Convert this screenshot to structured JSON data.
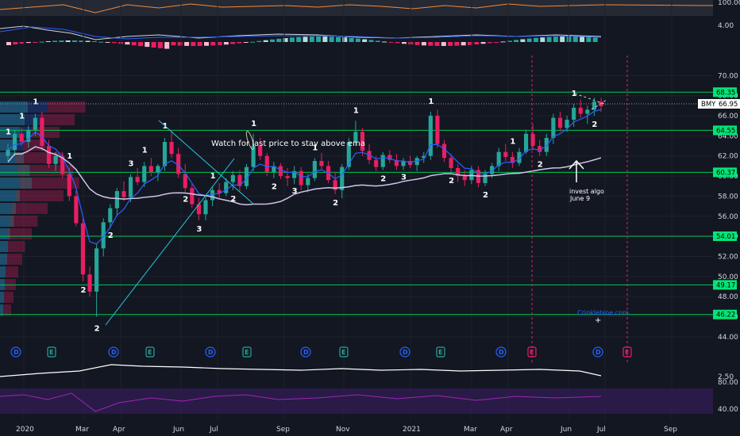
{
  "chart_data": {
    "type": "candlestick",
    "symbol": "BMY",
    "last_price": "66.95",
    "price_axis": {
      "range": [
        43.2,
        72.0
      ],
      "ticks": [
        "70.00",
        "68.00",
        "66.00",
        "64.00",
        "62.00",
        "60.00",
        "58.00",
        "56.00",
        "54.00",
        "52.00",
        "50.00",
        "48.00",
        "46.00",
        "44.00"
      ]
    },
    "time_axis": {
      "labels": [
        "2020",
        "Mar",
        "Apr",
        "Jun",
        "Jul",
        "Sep",
        "Nov",
        "2021",
        "Mar",
        "Apr",
        "Jun",
        "Jul",
        "Sep"
      ]
    },
    "levels": [
      "68.35",
      "64.55",
      "60.37",
      "54.01",
      "49.17",
      "46.22"
    ],
    "top_indicator_labels": [
      "100.00",
      "4.00"
    ],
    "bottom_indicator_labels": [
      "2.50",
      "80.00",
      "40.00"
    ],
    "annotations": {
      "watch_text": "Watch for last price to stay above ema",
      "invest_text_1": "invest algo",
      "invest_text_2": "June 9",
      "watermark": "Crinklebine.com"
    },
    "events": [
      "D",
      "E",
      "D",
      "E",
      "D",
      "E",
      "D",
      "E",
      "D",
      "E",
      "D",
      "E",
      "D",
      "E"
    ],
    "candles": [
      [
        62.0,
        63.2,
        61.5,
        62.6
      ],
      [
        62.6,
        64.6,
        62.0,
        64.2
      ],
      [
        64.2,
        64.8,
        63.0,
        63.4
      ],
      [
        63.4,
        65.0,
        62.8,
        64.6
      ],
      [
        64.6,
        66.2,
        64.0,
        65.8
      ],
      [
        65.8,
        66.4,
        62.5,
        63.0
      ],
      [
        63.0,
        63.6,
        60.8,
        61.2
      ],
      [
        61.2,
        62.4,
        60.5,
        62.0
      ],
      [
        62.0,
        62.3,
        59.8,
        60.2
      ],
      [
        60.2,
        60.8,
        57.5,
        58.0
      ],
      [
        58.0,
        58.6,
        55.0,
        55.3
      ],
      [
        55.3,
        55.8,
        49.5,
        50.2
      ],
      [
        50.2,
        51.0,
        48.0,
        48.5
      ],
      [
        48.5,
        53.2,
        46.0,
        52.8
      ],
      [
        52.8,
        55.8,
        52.0,
        55.4
      ],
      [
        55.4,
        57.2,
        54.8,
        56.8
      ],
      [
        56.8,
        58.8,
        56.0,
        58.5
      ],
      [
        58.5,
        59.5,
        57.5,
        57.9
      ],
      [
        57.9,
        60.2,
        57.4,
        59.9
      ],
      [
        59.9,
        60.8,
        59.1,
        59.4
      ],
      [
        59.4,
        61.4,
        58.9,
        61.0
      ],
      [
        61.0,
        61.8,
        60.0,
        60.4
      ],
      [
        60.4,
        61.2,
        59.5,
        61.0
      ],
      [
        61.0,
        63.8,
        60.5,
        63.4
      ],
      [
        63.4,
        64.6,
        61.8,
        62.2
      ],
      [
        62.2,
        62.8,
        59.8,
        60.2
      ],
      [
        60.2,
        61.2,
        58.4,
        58.8
      ],
      [
        58.8,
        59.2,
        56.8,
        57.2
      ],
      [
        57.2,
        57.8,
        55.6,
        56.2
      ],
      [
        56.2,
        58.0,
        55.6,
        57.6
      ],
      [
        57.6,
        59.0,
        57.0,
        58.6
      ],
      [
        58.6,
        59.3,
        57.8,
        58.3
      ],
      [
        58.3,
        59.8,
        58.0,
        59.4
      ],
      [
        59.4,
        60.5,
        58.6,
        60.1
      ],
      [
        60.1,
        60.6,
        58.5,
        59.0
      ],
      [
        59.0,
        61.2,
        58.7,
        60.9
      ],
      [
        60.9,
        64.2,
        60.5,
        63.0
      ],
      [
        63.0,
        63.8,
        61.6,
        62.0
      ],
      [
        62.0,
        62.3,
        60.0,
        60.4
      ],
      [
        60.4,
        61.4,
        59.8,
        61.0
      ],
      [
        61.0,
        61.3,
        59.7,
        60.0
      ],
      [
        60.0,
        60.8,
        59.0,
        59.8
      ],
      [
        59.8,
        61.0,
        59.2,
        60.5
      ],
      [
        60.5,
        60.9,
        58.6,
        59.1
      ],
      [
        59.1,
        60.2,
        58.4,
        59.8
      ],
      [
        59.8,
        61.8,
        59.5,
        61.5
      ],
      [
        61.5,
        62.3,
        60.6,
        61.0
      ],
      [
        61.0,
        61.5,
        59.3,
        59.6
      ],
      [
        59.6,
        60.4,
        58.2,
        58.6
      ],
      [
        58.6,
        61.2,
        57.8,
        60.9
      ],
      [
        60.9,
        63.8,
        60.6,
        63.4
      ],
      [
        63.4,
        65.5,
        63.0,
        64.4
      ],
      [
        64.4,
        64.8,
        62.0,
        62.5
      ],
      [
        62.5,
        63.2,
        61.2,
        61.6
      ],
      [
        61.6,
        62.0,
        60.5,
        60.9
      ],
      [
        60.9,
        62.4,
        60.6,
        62.1
      ],
      [
        62.1,
        62.6,
        61.3,
        61.6
      ],
      [
        61.6,
        62.2,
        60.6,
        61.0
      ],
      [
        61.0,
        61.8,
        60.6,
        61.5
      ],
      [
        61.5,
        62.0,
        60.8,
        61.1
      ],
      [
        61.1,
        62.0,
        60.5,
        61.8
      ],
      [
        61.8,
        62.4,
        61.3,
        62.0
      ],
      [
        62.0,
        66.4,
        61.6,
        66.0
      ],
      [
        66.0,
        66.6,
        62.8,
        63.2
      ],
      [
        63.2,
        63.6,
        61.4,
        61.8
      ],
      [
        61.8,
        62.2,
        60.4,
        60.8
      ],
      [
        60.8,
        61.2,
        59.4,
        60.0
      ],
      [
        60.0,
        60.6,
        59.0,
        59.6
      ],
      [
        59.6,
        61.0,
        59.2,
        60.6
      ],
      [
        60.6,
        61.0,
        58.9,
        59.3
      ],
      [
        59.3,
        60.6,
        59.0,
        60.2
      ],
      [
        60.2,
        61.3,
        59.8,
        61.0
      ],
      [
        61.0,
        62.8,
        60.5,
        62.4
      ],
      [
        62.4,
        63.2,
        61.5,
        61.9
      ],
      [
        61.9,
        62.4,
        60.8,
        61.3
      ],
      [
        61.3,
        62.8,
        61.0,
        62.4
      ],
      [
        62.4,
        64.6,
        62.2,
        64.2
      ],
      [
        64.2,
        65.2,
        62.6,
        63.0
      ],
      [
        63.0,
        63.6,
        62.0,
        62.4
      ],
      [
        62.4,
        64.2,
        62.0,
        63.8
      ],
      [
        63.8,
        66.2,
        63.2,
        65.8
      ],
      [
        65.8,
        66.4,
        64.4,
        64.8
      ],
      [
        64.8,
        66.0,
        64.4,
        65.6
      ],
      [
        65.6,
        67.2,
        64.9,
        66.8
      ],
      [
        66.8,
        67.6,
        65.8,
        66.2
      ],
      [
        66.2,
        67.0,
        65.2,
        66.6
      ],
      [
        66.6,
        67.8,
        66.0,
        67.4
      ],
      [
        67.4,
        67.8,
        66.4,
        66.95
      ]
    ]
  }
}
